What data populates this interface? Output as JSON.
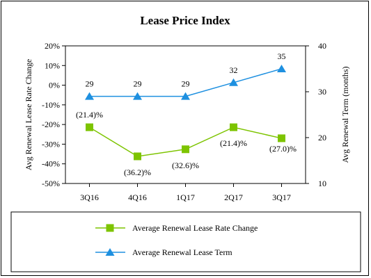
{
  "chart_data": {
    "type": "line",
    "title": "Lease Price Index",
    "categories": [
      "3Q16",
      "4Q16",
      "1Q17",
      "2Q17",
      "3Q17"
    ],
    "y_left": {
      "label": "Avg Renewal Lease Rate Change",
      "range": [
        -50,
        20
      ],
      "ticks": [
        20,
        10,
        0,
        -10,
        -20,
        -30,
        -40,
        -50
      ],
      "tick_labels": [
        "20%",
        "10%",
        "0%",
        "-10%",
        "-20%",
        "-30%",
        "-40%",
        "-50%"
      ]
    },
    "y_right": {
      "label": "Avg Renewal Term (months)",
      "range": [
        10,
        40
      ],
      "ticks": [
        40,
        30,
        20,
        10
      ],
      "tick_labels": [
        "40",
        "30",
        "20",
        "10"
      ]
    },
    "series": [
      {
        "name": "Average Renewal Lease Rate Change",
        "axis": "left",
        "marker": "square",
        "color": "#7DC400",
        "values": [
          -21.4,
          -36.2,
          -32.6,
          -21.4,
          -27.0
        ],
        "labels": [
          "(21.4)%",
          "(36.2)%",
          "(32.6)%",
          "(21.4)%",
          "(27.0)%"
        ],
        "label_positions": [
          "above",
          "below",
          "below",
          "below",
          "below"
        ]
      },
      {
        "name": "Average Renewal Lease Term",
        "axis": "right",
        "marker": "triangle",
        "color": "#1E90E0",
        "values": [
          29,
          29,
          29,
          32,
          35
        ],
        "labels": [
          "29",
          "29",
          "29",
          "32",
          "35"
        ]
      }
    ],
    "grid": false,
    "legend_position": "bottom"
  }
}
